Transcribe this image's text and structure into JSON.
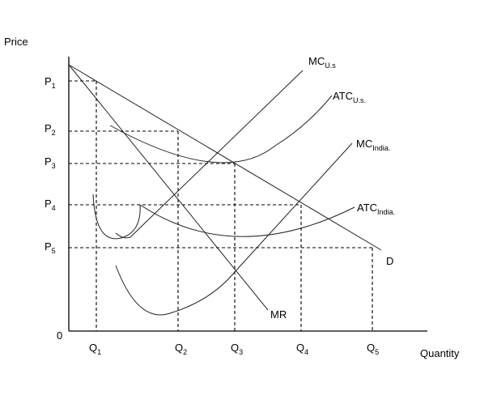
{
  "axes": {
    "y_label": "Price",
    "x_label": "Quantity",
    "origin": "0"
  },
  "price_ticks": [
    {
      "base": "P",
      "sub": "1"
    },
    {
      "base": "P",
      "sub": "2"
    },
    {
      "base": "P",
      "sub": "3"
    },
    {
      "base": "P",
      "sub": "4"
    },
    {
      "base": "P",
      "sub": "5"
    }
  ],
  "quantity_ticks": [
    {
      "base": "Q",
      "sub": "1"
    },
    {
      "base": "Q",
      "sub": "2"
    },
    {
      "base": "Q",
      "sub": "3"
    },
    {
      "base": "Q",
      "sub": "4"
    },
    {
      "base": "Q",
      "sub": "5"
    }
  ],
  "curves": {
    "mc_us": {
      "base": "MC",
      "sub": "U.s"
    },
    "atc_us": {
      "base": "ATC",
      "sub": "U.s."
    },
    "mc_india": {
      "base": "MC",
      "sub": "India."
    },
    "atc_india": {
      "base": "ATC",
      "sub": "India."
    },
    "demand": "D",
    "mr": "MR"
  }
}
